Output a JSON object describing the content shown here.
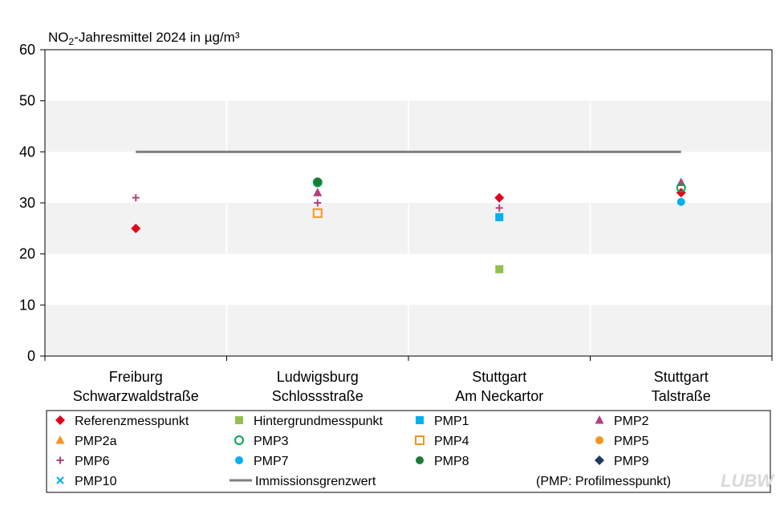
{
  "chart_data": {
    "type": "scatter",
    "title": "NO₂-Jahresmittel  2024 in µg/m³",
    "title_main": "NO",
    "title_sub": "2",
    "title_rest": "-Jahresmittel  2024 in µg/m³",
    "ylim": [
      0,
      60
    ],
    "yticks": [
      0,
      10,
      20,
      30,
      40,
      50,
      60
    ],
    "grid": "alternating horizontal bands",
    "categories": [
      [
        "Freiburg",
        "Schwarzwaldstraße"
      ],
      [
        "Ludwigsburg",
        "Schlossstraße"
      ],
      [
        "Stuttgart",
        "Am Neckartor"
      ],
      [
        "Stuttgart",
        "Talstraße"
      ]
    ],
    "limit_line": {
      "name": "Immissionsgrenzwert",
      "value": 40,
      "color": "#808080"
    },
    "series": [
      {
        "name": "Referenzmesspunkt",
        "marker": "diamond",
        "color": "#e3001b",
        "values": [
          25,
          34,
          31,
          32
        ]
      },
      {
        "name": "Hintergrundmesspunkt",
        "marker": "square",
        "color": "#92c04f",
        "values": [
          null,
          null,
          17,
          null
        ]
      },
      {
        "name": "PMP1",
        "marker": "square",
        "color": "#00b0f0",
        "values": [
          null,
          null,
          27.2,
          null
        ]
      },
      {
        "name": "PMP2",
        "marker": "triangle",
        "color": "#b2407f",
        "values": [
          null,
          32,
          null,
          34
        ]
      },
      {
        "name": "PMP2a",
        "marker": "triangle",
        "color": "#f7941d",
        "values": [
          null,
          null,
          null,
          null
        ]
      },
      {
        "name": "PMP3",
        "marker": "circle-open",
        "color": "#00a651",
        "values": [
          null,
          34,
          null,
          33
        ]
      },
      {
        "name": "PMP4",
        "marker": "square-open",
        "color": "#f7941d",
        "values": [
          null,
          28,
          null,
          null
        ]
      },
      {
        "name": "PMP5",
        "marker": "circle",
        "color": "#f7941d",
        "values": [
          null,
          null,
          null,
          null
        ]
      },
      {
        "name": "PMP6",
        "marker": "plus",
        "color": "#b2407f",
        "values": [
          31,
          30,
          29,
          null
        ]
      },
      {
        "name": "PMP7",
        "marker": "circle",
        "color": "#00b0f0",
        "values": [
          null,
          null,
          null,
          30.2
        ]
      },
      {
        "name": "PMP8",
        "marker": "circle",
        "color": "#1a7b37",
        "values": [
          null,
          34.2,
          null,
          null
        ]
      },
      {
        "name": "PMP9",
        "marker": "diamond",
        "color": "#1f3864",
        "values": [
          null,
          null,
          null,
          null
        ]
      },
      {
        "name": "PMP10",
        "marker": "x",
        "color": "#00b0f0",
        "values": [
          null,
          null,
          null,
          null
        ]
      }
    ],
    "legend_note": "(PMP: Profilmesspunkt)",
    "legend_position": "bottom"
  },
  "logo_text": "LUBW"
}
